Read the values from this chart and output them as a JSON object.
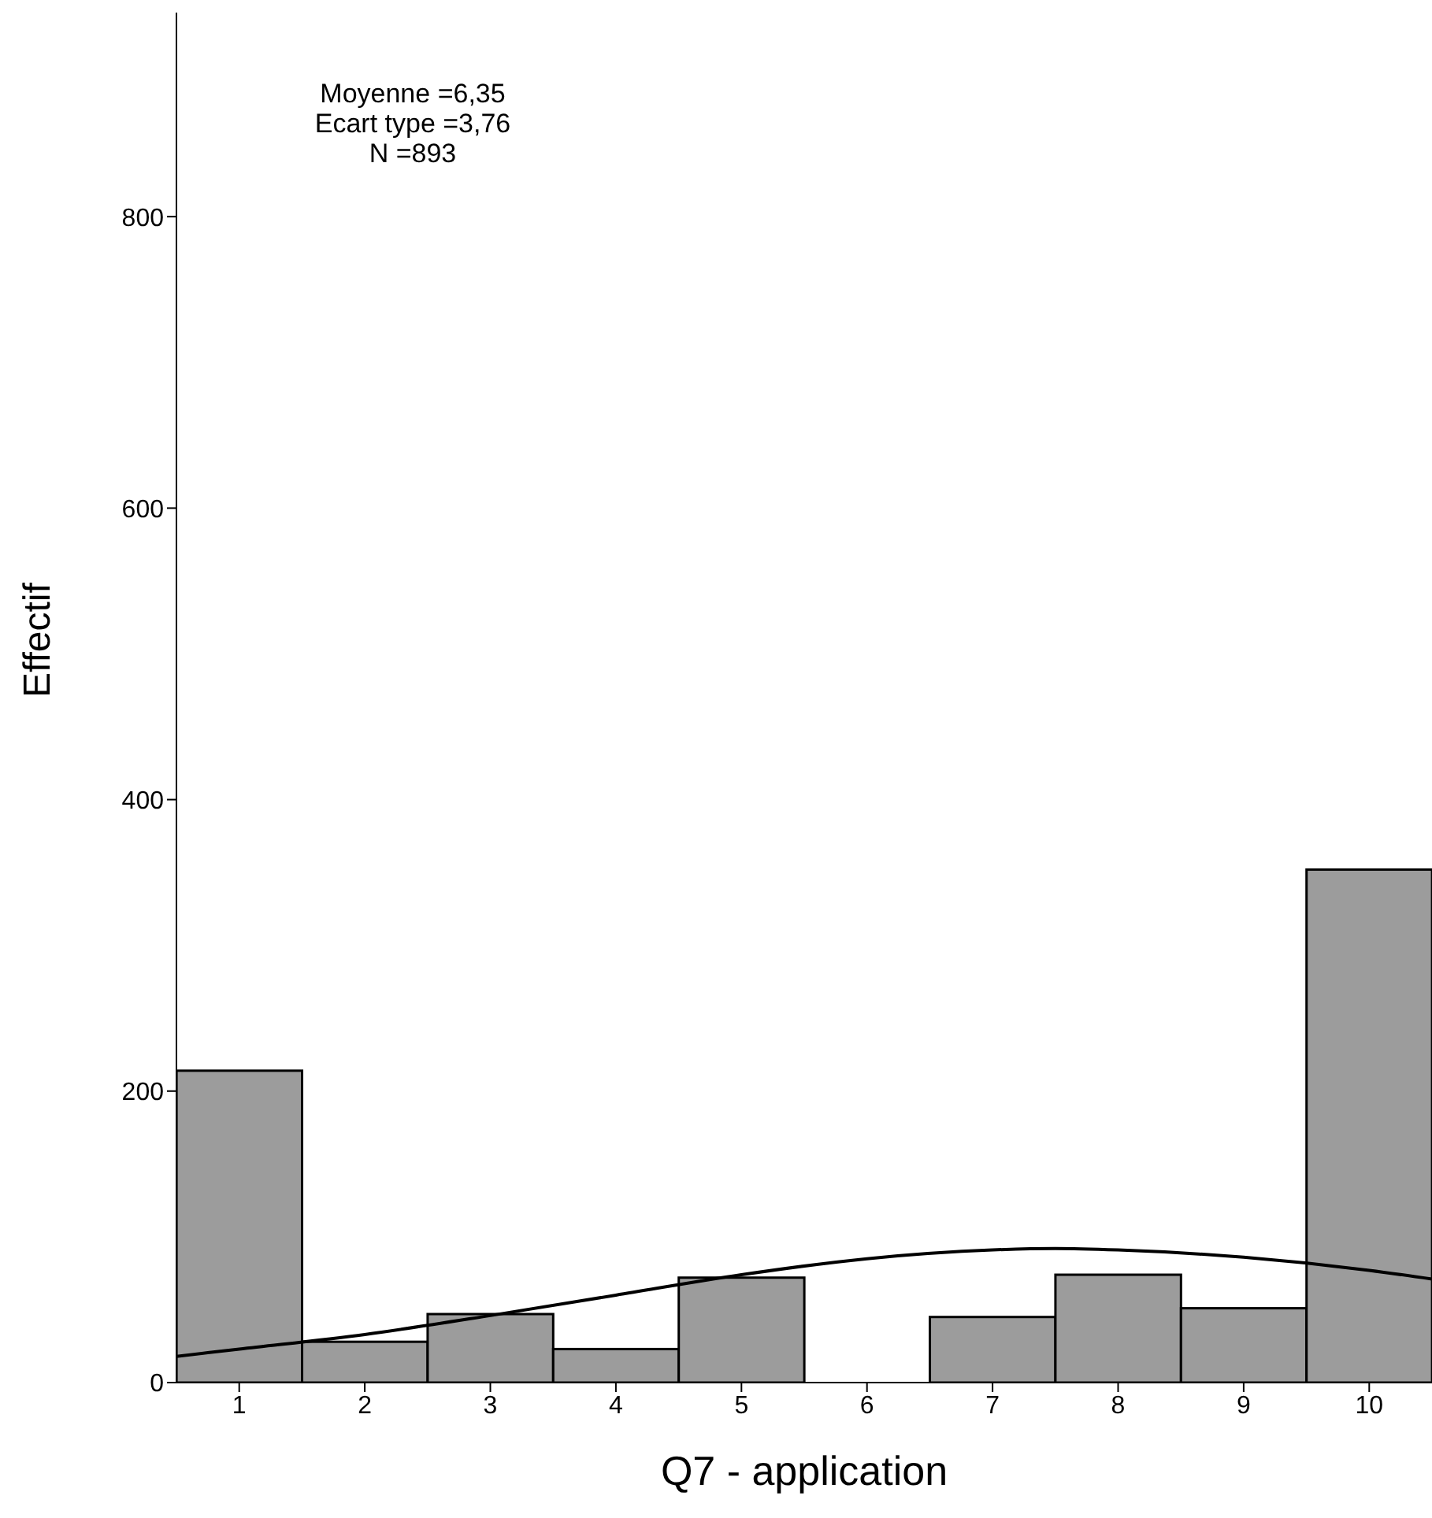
{
  "chart_data": {
    "type": "histogram",
    "xlabel": "Q7 - application",
    "ylabel": "Effectif",
    "bins": [
      0.5,
      1.5,
      2.5,
      3.5,
      4.5,
      5.5,
      6.5,
      7.5,
      8.5,
      9.5,
      10.5
    ],
    "values": [
      214,
      28,
      47,
      23,
      72,
      0,
      45,
      74,
      51,
      352
    ],
    "color": "#9c9c9c",
    "xlim": [
      0.5,
      10.5
    ],
    "xticks": [
      1,
      2,
      3,
      4,
      5,
      6,
      7,
      8,
      9,
      10
    ],
    "ylim": [
      0,
      940
    ],
    "yticks": [
      0,
      200,
      400,
      600,
      800
    ],
    "series": [
      {
        "type": "line",
        "color": "#000000",
        "x": [
          0.5,
          1,
          2,
          3,
          4,
          5,
          6,
          7,
          7.5,
          8,
          9,
          10,
          10.5
        ],
        "values": [
          18,
          23,
          33,
          46,
          60,
          74,
          85,
          91,
          92,
          91,
          86,
          77,
          71
        ]
      }
    ],
    "annotations": [
      "Moyenne =6,35",
      "Ecart type =3,76",
      "N =893"
    ],
    "grid": false
  }
}
